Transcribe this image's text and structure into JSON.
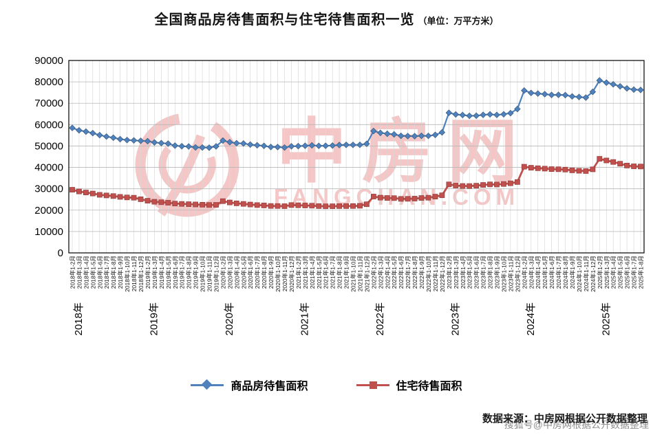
{
  "title": {
    "main": "全国商品房待售面积与住宅待售面积一览",
    "unit": "（单位：万平方米）"
  },
  "watermark": {
    "logo_text": "中房网",
    "domain": "FANGCHAN.COM",
    "color": "#dd4444"
  },
  "source": {
    "label": "数据来源：中房网根据公开数据整理",
    "overlay": "搜狐号@中房网根据公开数据整理"
  },
  "chart_data": {
    "type": "line",
    "ylim": [
      0,
      90000
    ],
    "ytick_step": 10000,
    "ytick_labels": [
      0,
      10000,
      20000,
      30000,
      40000,
      50000,
      60000,
      70000,
      80000,
      90000
    ],
    "grid": true,
    "legend_position": "bottom",
    "year_groups": [
      {
        "label": "2018年",
        "count": 11
      },
      {
        "label": "2019年",
        "count": 11
      },
      {
        "label": "2020年",
        "count": 11
      },
      {
        "label": "2021年",
        "count": 11
      },
      {
        "label": "2022年",
        "count": 11
      },
      {
        "label": "2023年",
        "count": 11
      },
      {
        "label": "2024年",
        "count": 11
      },
      {
        "label": "2025年",
        "count": 7
      }
    ],
    "categories": [
      "2018年1-2月",
      "2018年1-3月",
      "2018年1-4月",
      "2018年1-5月",
      "2018年1-6月",
      "2018年1-7月",
      "2018年1-8月",
      "2018年1-9月",
      "2018年1-10月",
      "2018年1-11月",
      "2018年1-12月",
      "2019年1-2月",
      "2019年1-3月",
      "2019年1-4月",
      "2019年1-5月",
      "2019年1-6月",
      "2019年1-7月",
      "2019年1-8月",
      "2019年1-9月",
      "2019年1-10月",
      "2019年1-11月",
      "2019年1-12月",
      "2020年1-2月",
      "2020年1-3月",
      "2020年1-4月",
      "2020年1-5月",
      "2020年1-6月",
      "2020年1-7月",
      "2020年1-8月",
      "2020年1-9月",
      "2020年1-10月",
      "2020年1-11月",
      "2020年1-12月",
      "2021年1-2月",
      "2021年1-3月",
      "2021年1-4月",
      "2021年1-5月",
      "2021年1-6月",
      "2021年1-7月",
      "2021年1-8月",
      "2021年1-9月",
      "2021年1-10月",
      "2021年1-11月",
      "2021年1-12月",
      "2022年1-2月",
      "2022年1-3月",
      "2022年1-4月",
      "2022年1-5月",
      "2022年1-6月",
      "2022年1-7月",
      "2022年1-8月",
      "2022年1-9月",
      "2022年1-10月",
      "2022年1-11月",
      "2022年1-12月",
      "2023年1-2月",
      "2023年1-3月",
      "2023年1-4月",
      "2023年1-5月",
      "2023年1-6月",
      "2023年1-7月",
      "2023年1-8月",
      "2023年1-9月",
      "2023年1-10月",
      "2023年1-11月",
      "2023年1-12月",
      "2024年1-2月",
      "2024年1-3月",
      "2024年1-4月",
      "2024年1-5月",
      "2024年1-6月",
      "2024年1-7月",
      "2024年1-8月",
      "2024年1-9月",
      "2024年1-10月",
      "2024年1-11月",
      "2024年1-12月",
      "2025年1-2月",
      "2025年1-3月",
      "2025年1-4月",
      "2025年1-5月",
      "2025年1-6月",
      "2025年1-7月",
      "2025年1-8月"
    ],
    "series": [
      {
        "name": "商品房待售面积",
        "color": "#4F81BD",
        "outline": "#31506f",
        "marker": "diamond",
        "values": [
          58468,
          57329,
          56726,
          56010,
          55083,
          54428,
          53873,
          53191,
          52789,
          52627,
          52414,
          52251,
          51646,
          51380,
          51113,
          50162,
          49876,
          49784,
          49346,
          49323,
          49221,
          49821,
          52563,
          51779,
          51312,
          51184,
          50662,
          50323,
          50052,
          49540,
          49492,
          49287,
          49850,
          49952,
          50098,
          50305,
          50086,
          50114,
          50222,
          50456,
          50518,
          50539,
          50576,
          51023,
          57026,
          56113,
          55735,
          55433,
          54784,
          54655,
          54605,
          54767,
          54734,
          55203,
          56366,
          65528,
          64770,
          64487,
          64120,
          64159,
          64564,
          64795,
          64537,
          64835,
          65385,
          67295,
          75969,
          74833,
          74553,
          74256,
          73894,
          73926,
          73784,
          73176,
          72920,
          72645,
          75327,
          80664,
          79611,
          78845,
          77909,
          76948,
          76386,
          76213
        ]
      },
      {
        "name": "住宅待售面积",
        "color": "#C0504D",
        "outline": "#8c3836",
        "marker": "square",
        "values": [
          29539,
          28728,
          28260,
          27761,
          27164,
          26869,
          26580,
          26206,
          25955,
          25809,
          25091,
          24404,
          23922,
          23686,
          23473,
          23093,
          22908,
          22796,
          22660,
          22522,
          22418,
          22473,
          24217,
          23577,
          23181,
          22912,
          22624,
          22384,
          22216,
          21968,
          21910,
          21854,
          22379,
          22274,
          22183,
          22082,
          21879,
          21785,
          21817,
          21903,
          21899,
          21921,
          22055,
          22761,
          26366,
          25840,
          25681,
          25612,
          25249,
          25295,
          25387,
          25688,
          25801,
          26319,
          26947,
          32041,
          31487,
          31313,
          31268,
          31433,
          31793,
          32056,
          31978,
          32236,
          32564,
          33139,
          40311,
          39820,
          39608,
          39402,
          39193,
          39102,
          38968,
          38605,
          38403,
          38286,
          39088,
          44005,
          43233,
          42519,
          41716,
          40858,
          40504,
          40391
        ]
      }
    ]
  }
}
